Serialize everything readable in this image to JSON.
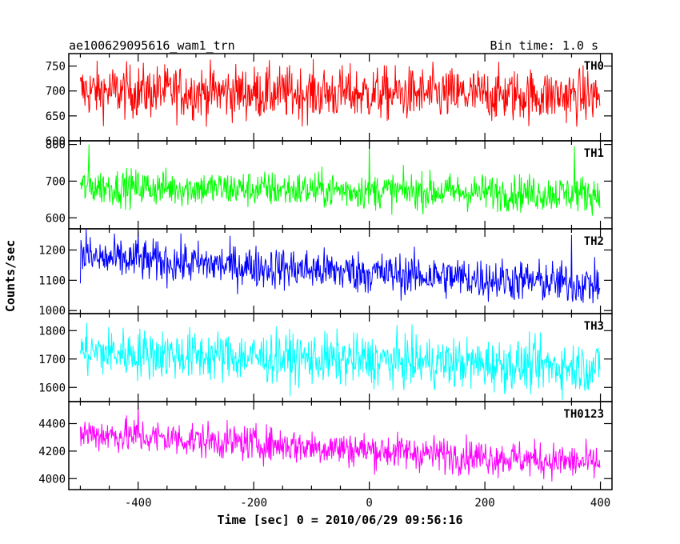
{
  "chart_data": {
    "type": "line",
    "title": "ae100629095616_wam1_trn",
    "bin_time": "Bin time: 1.0 s",
    "xlabel": "Time [sec] 0 = 2010/06/29 09:56:16",
    "ylabel": "Counts/sec",
    "xlim": [
      -520,
      420
    ],
    "x_range": [
      -500,
      399
    ],
    "x_ticks": [
      -400,
      -200,
      0,
      200,
      400
    ],
    "grid": false,
    "panels": [
      {
        "name": "TH0",
        "color": "#ff0000",
        "ylim": [
          600,
          775
        ],
        "yticks": [
          600,
          650,
          700,
          750
        ],
        "mean_start": 700,
        "mean_end": 690,
        "noise": 27,
        "spikes": []
      },
      {
        "name": "TH1",
        "color": "#00ff00",
        "ylim": [
          570,
          810
        ],
        "yticks": [
          600,
          700,
          800
        ],
        "mean_start": 685,
        "mean_end": 665,
        "noise": 25,
        "spikes": [
          [
            -485,
            800
          ],
          [
            0,
            805
          ],
          [
            355,
            795
          ]
        ]
      },
      {
        "name": "TH2",
        "color": "#0000ff",
        "ylim": [
          990,
          1270
        ],
        "yticks": [
          1000,
          1100,
          1200
        ],
        "mean_start": 1175,
        "mean_end": 1085,
        "noise": 35,
        "spikes": [
          [
            -490,
            1270
          ],
          [
            -400,
            1260
          ],
          [
            350,
            1250
          ]
        ]
      },
      {
        "name": "TH3",
        "color": "#00ffff",
        "ylim": [
          1550,
          1860
        ],
        "yticks": [
          1600,
          1700,
          1800
        ],
        "mean_start": 1725,
        "mean_end": 1670,
        "noise": 45,
        "spikes": []
      },
      {
        "name": "TH0123",
        "color": "#ff00ff",
        "ylim": [
          3920,
          4560
        ],
        "yticks": [
          4000,
          4200,
          4400
        ],
        "mean_start": 4330,
        "mean_end": 4110,
        "noise": 65,
        "spikes": [
          [
            -400,
            4540
          ]
        ]
      }
    ]
  }
}
